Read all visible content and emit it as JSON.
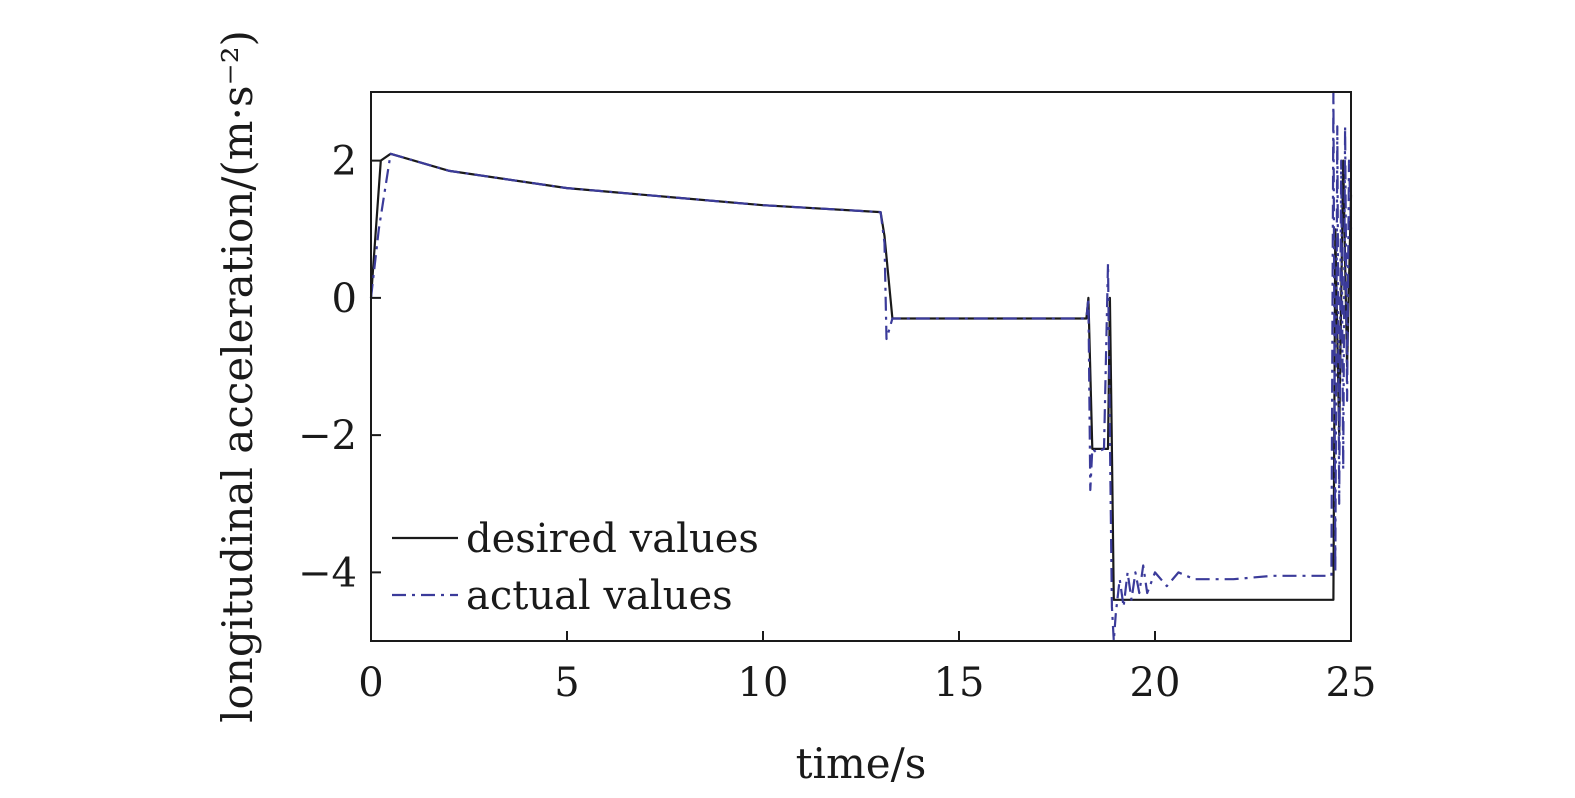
{
  "chart_data": {
    "type": "line",
    "xlabel": "time/s",
    "ylabel": "longitudinal acceleration/(m·s⁻²)",
    "xlim": [
      0,
      25
    ],
    "ylim": [
      -5,
      3
    ],
    "xticks": [
      0,
      5,
      10,
      15,
      20,
      25
    ],
    "yticks": [
      2,
      0,
      -2,
      -4
    ],
    "xtick_labels": [
      "0",
      "5",
      "10",
      "15",
      "20",
      "25"
    ],
    "ytick_labels": [
      "2",
      "0",
      "−2",
      "−4"
    ],
    "grid": false,
    "legend_position": "bottom-left",
    "colors": {
      "desired": "#1a1a1a",
      "actual": "#3b3b9a",
      "axis": "#1a1a1a"
    },
    "series": [
      {
        "name": "desired values",
        "style": "solid",
        "x": [
          0,
          0.25,
          0.5,
          2,
          5,
          8,
          10,
          13.0,
          13.1,
          13.3,
          15,
          18.25,
          18.3,
          18.4,
          18.6,
          18.8,
          18.85,
          18.9,
          18.95,
          19.0,
          22,
          24.55,
          24.6,
          24.7,
          24.8,
          24.9,
          25
        ],
        "y": [
          0,
          2.0,
          2.1,
          1.85,
          1.6,
          1.45,
          1.35,
          1.25,
          0.9,
          -0.3,
          -0.3,
          -0.3,
          0,
          -2.2,
          -2.2,
          -2.2,
          0,
          -2.2,
          -4.4,
          -4.4,
          -4.4,
          -4.4,
          1.0,
          -2.0,
          2.0,
          -1.0,
          1.5
        ]
      },
      {
        "name": "actual values",
        "style": "dashdot",
        "x": [
          0,
          0.2,
          0.5,
          2,
          5,
          8,
          10,
          13.0,
          13.1,
          13.15,
          13.3,
          15,
          18.25,
          18.3,
          18.35,
          18.4,
          18.5,
          18.7,
          18.8,
          18.85,
          18.9,
          18.95,
          19.0,
          19.1,
          19.2,
          19.3,
          19.4,
          19.5,
          19.6,
          19.7,
          19.8,
          20.0,
          20.3,
          20.6,
          21,
          22,
          23,
          24.5,
          24.55,
          24.6,
          24.65,
          24.7,
          24.75,
          24.8,
          24.85,
          24.9,
          24.95,
          25
        ],
        "y": [
          0,
          1.0,
          2.1,
          1.85,
          1.6,
          1.45,
          1.35,
          1.25,
          0.8,
          -0.6,
          -0.3,
          -0.3,
          -0.3,
          0,
          -2.8,
          -2.2,
          -2.25,
          -2.2,
          0.5,
          -2.0,
          -4.5,
          -5.0,
          -4.6,
          -4.1,
          -4.5,
          -4.0,
          -4.4,
          -4.0,
          -4.3,
          -3.9,
          -4.3,
          -4.0,
          -4.2,
          -4.0,
          -4.1,
          -4.1,
          -4.05,
          -4.05,
          3.0,
          -4.0,
          2.5,
          -3.0,
          2.0,
          -2.5,
          2.5,
          -1.5,
          2.0,
          1.0
        ]
      }
    ]
  }
}
